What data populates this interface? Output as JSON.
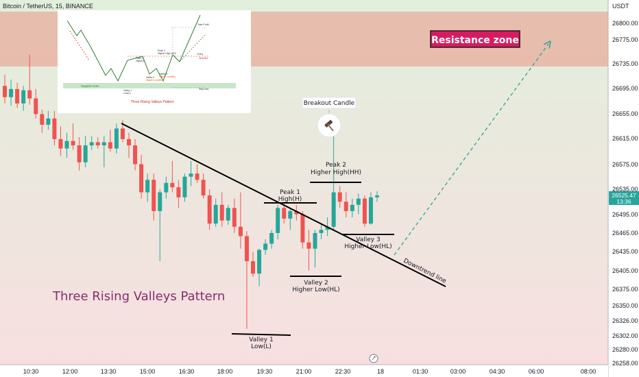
{
  "header": {
    "symbol": "Bitcoin / TetherUS, 15, BINANCE",
    "currency": "USDT"
  },
  "colors": {
    "up": "#26a69a",
    "down": "#ef5350",
    "resistance_zone": "#e8b4a4",
    "background_top": "#e2efdc",
    "background_bottom": "#f7dfe0",
    "title": "#8a2c6e",
    "badge_bg": "#d81b60"
  },
  "chart_data": {
    "type": "candlestick",
    "y_axis": {
      "ticks": [
        26800,
        26775,
        26735,
        26695,
        26655,
        26615,
        26575,
        26535,
        26495,
        26465,
        26435,
        26405,
        26375,
        26350,
        26326,
        26302,
        26280,
        26258
      ],
      "labels": [
        "26800.00",
        "26775.00",
        "26735.00",
        "26695.00",
        "26655.00",
        "26615.00",
        "26575.00",
        "26535.00",
        "26495.00",
        "26465.00",
        "26435.00",
        "26405.00",
        "26375.00",
        "26350.00",
        "26326.00",
        "26302.00",
        "26280.00",
        "26258.00"
      ]
    },
    "x_axis": {
      "labels": [
        "10:30",
        "12:00",
        "13:30",
        "15:00",
        "16:30",
        "18:00",
        "19:30",
        "21:00",
        "22:30",
        "18",
        "01:30",
        "03:00",
        "04:30",
        "06:00",
        "08:00"
      ]
    },
    "last_price": {
      "value": "26525.47",
      "timer": "13:36"
    },
    "candles": [
      [
        26700,
        26718,
        26672,
        26682
      ],
      [
        26682,
        26710,
        26668,
        26695
      ],
      [
        26695,
        26705,
        26665,
        26672
      ],
      [
        26672,
        26700,
        26660,
        26693
      ],
      [
        26693,
        26750,
        26670,
        26680
      ],
      [
        26680,
        26695,
        26648,
        26655
      ],
      [
        26655,
        26662,
        26625,
        26638
      ],
      [
        26638,
        26660,
        26630,
        26648
      ],
      [
        26648,
        26660,
        26605,
        26615
      ],
      [
        26615,
        26635,
        26588,
        26600
      ],
      [
        26600,
        26625,
        26585,
        26612
      ],
      [
        26612,
        26640,
        26598,
        26605
      ],
      [
        26605,
        26618,
        26565,
        26578
      ],
      [
        26578,
        26620,
        26570,
        26605
      ],
      [
        26605,
        26620,
        26598,
        26610
      ],
      [
        26610,
        26618,
        26600,
        26605
      ],
      [
        26605,
        26620,
        26570,
        26610
      ],
      [
        26610,
        26630,
        26595,
        26600
      ],
      [
        26600,
        26640,
        26592,
        26632
      ],
      [
        26632,
        26645,
        26610,
        26615
      ],
      [
        26615,
        26625,
        26585,
        26605
      ],
      [
        26605,
        26615,
        26565,
        26575
      ],
      [
        26575,
        26590,
        26520,
        26530
      ],
      [
        26530,
        26560,
        26515,
        26550
      ],
      [
        26550,
        26560,
        26485,
        26500
      ],
      [
        26500,
        26535,
        26420,
        26530
      ],
      [
        26530,
        26555,
        26520,
        26545
      ],
      [
        26545,
        26580,
        26530,
        26538
      ],
      [
        26538,
        26550,
        26505,
        26522
      ],
      [
        26522,
        26560,
        26515,
        26555
      ],
      [
        26555,
        26580,
        26540,
        26560
      ],
      [
        26560,
        26575,
        26545,
        26550
      ],
      [
        26550,
        26560,
        26520,
        26525
      ],
      [
        26525,
        26535,
        26470,
        26480
      ],
      [
        26480,
        26520,
        26475,
        26510
      ],
      [
        26510,
        26530,
        26475,
        26485
      ],
      [
        26485,
        26510,
        26478,
        26505
      ],
      [
        26505,
        26520,
        26465,
        26475
      ],
      [
        26475,
        26530,
        26440,
        26460
      ],
      [
        26460,
        26468,
        26312,
        26420
      ],
      [
        26420,
        26435,
        26395,
        26400
      ],
      [
        26400,
        26440,
        26380,
        26438
      ],
      [
        26438,
        26455,
        26430,
        26448
      ],
      [
        26448,
        26470,
        26440,
        26465
      ],
      [
        26465,
        26510,
        26455,
        26505
      ],
      [
        26505,
        26515,
        26480,
        26488
      ],
      [
        26488,
        26505,
        26470,
        26500
      ],
      [
        26500,
        26510,
        26485,
        26495
      ],
      [
        26495,
        26500,
        26440,
        26450
      ],
      [
        26450,
        26470,
        26405,
        26440
      ],
      [
        26440,
        26470,
        26410,
        26465
      ],
      [
        26465,
        26480,
        26455,
        26470
      ],
      [
        26470,
        26490,
        26460,
        26475
      ],
      [
        26475,
        26620,
        26470,
        26530
      ],
      [
        26530,
        26540,
        26505,
        26515
      ],
      [
        26515,
        26530,
        26490,
        26500
      ],
      [
        26500,
        26520,
        26490,
        26510
      ],
      [
        26510,
        26528,
        26495,
        26520
      ],
      [
        26520,
        26525,
        26475,
        26480
      ],
      [
        26480,
        26530,
        26478,
        26522
      ],
      [
        26522,
        26532,
        26515,
        26525
      ]
    ]
  },
  "annotations": {
    "resistance_zone": "Resistance zone",
    "breakout_candle": "Breakout Candle",
    "peak2_line1": "Peak 2",
    "peak2_line2": "Higher High(HH)",
    "peak1_line1": "Peak 1",
    "peak1_line2": "High(H)",
    "valley3_line1": "Valley 3",
    "valley3_line2": "Higher Low(HL)",
    "valley2_line1": "Valley 2",
    "valley2_line2": "Higher Low(HL)",
    "valley1_line1": "Valley 1",
    "valley1_line2": "Low(L)",
    "downtrend_line": "Downtrend line",
    "pattern_title": "Three Rising Valleys Pattern",
    "breakout_icon": "hammer-icon",
    "reset_icon": "auto-scale-icon"
  },
  "inset": {
    "title": "Three Rising Valleys Pattern",
    "support_zone": "Support zone",
    "valley1": "Valley 1",
    "valley1_sub": "Low(L)",
    "valley2": "Valley 2",
    "valley2_sub": "Higher Low(HL)",
    "valley3": "Valley 3",
    "valley3_sub": "Higher Low(HL)",
    "peak1": "Peak 1",
    "peak1_sub": "High(H)",
    "peak2": "Peak 2",
    "peak2_sub": "Higher High (HH)",
    "neckline": "Neckline",
    "stop_loss": "Stop loss",
    "take_profit": "Take Profit",
    "entry": "Entry"
  }
}
